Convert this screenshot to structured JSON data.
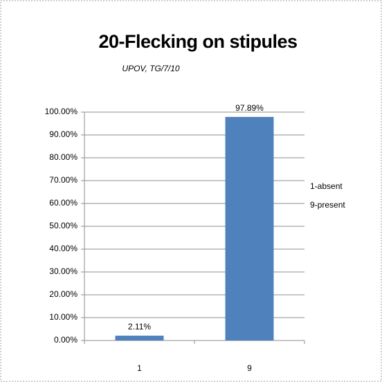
{
  "chart_data": {
    "type": "bar",
    "title": "20-Flecking on stipules",
    "subtitle": "UPOV, TG/7/10",
    "annotations": [
      "1-absent",
      "9-present"
    ],
    "categories": [
      "1",
      "9"
    ],
    "values": [
      2.11,
      97.89
    ],
    "value_labels": [
      "2.11%",
      "97.89%"
    ],
    "color": "#4f81bd",
    "ylim": [
      0,
      100
    ],
    "yticks": [
      {
        "value": 0,
        "label": "0.00%"
      },
      {
        "value": 10,
        "label": "10.00%"
      },
      {
        "value": 20,
        "label": "20.00%"
      },
      {
        "value": 30,
        "label": "30.00%"
      },
      {
        "value": 40,
        "label": "40.00%"
      },
      {
        "value": 50,
        "label": "50.00%"
      },
      {
        "value": 60,
        "label": "60.00%"
      },
      {
        "value": 70,
        "label": "70.00%"
      },
      {
        "value": 80,
        "label": "80.00%"
      },
      {
        "value": 90,
        "label": "90.00%"
      },
      {
        "value": 100,
        "label": "100.00%"
      }
    ],
    "grid": true
  }
}
